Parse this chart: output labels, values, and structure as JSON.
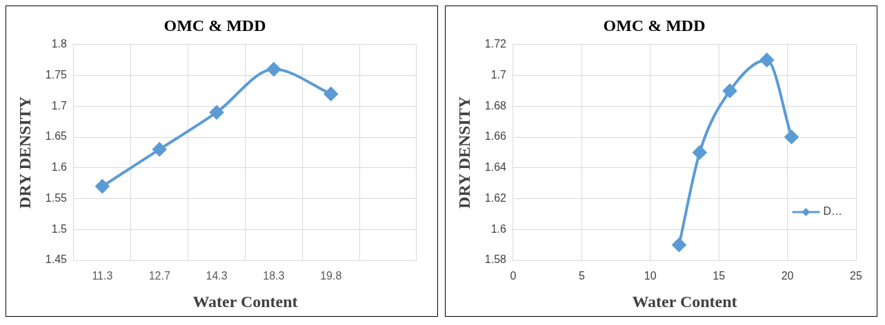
{
  "chart_data": [
    {
      "type": "line",
      "title": "OMC & MDD",
      "xlabel": "Water Content",
      "ylabel": "DRY DENSITY",
      "categories": [
        "11.3",
        "12.7",
        "14.3",
        "18.3",
        "19.8",
        null
      ],
      "series": [
        {
          "color": "#5b9bd5",
          "values": [
            1.57,
            1.63,
            1.69,
            1.76,
            1.72,
            null
          ]
        }
      ],
      "ylim": [
        1.45,
        1.8
      ],
      "yticks": [
        1.45,
        1.5,
        1.55,
        1.6,
        1.65,
        1.7,
        1.75,
        1.8
      ],
      "grid": true,
      "marker": "diamond"
    },
    {
      "type": "line",
      "title": "OMC & MDD",
      "xlabel": "Water Content",
      "ylabel": "DRY DENSITY",
      "series": [
        {
          "name": "D…",
          "color": "#5b9bd5",
          "x": [
            12.1,
            13.6,
            15.8,
            18.5,
            20.3
          ],
          "values": [
            1.59,
            1.65,
            1.69,
            1.71,
            1.66
          ]
        }
      ],
      "xlim": [
        0,
        25
      ],
      "xticks": [
        0,
        5,
        10,
        15,
        20,
        25
      ],
      "ylim": [
        1.58,
        1.72
      ],
      "yticks": [
        1.58,
        1.6,
        1.62,
        1.64,
        1.66,
        1.68,
        1.7,
        1.72
      ],
      "grid": true,
      "legend": "bottom right",
      "marker": "diamond"
    }
  ]
}
